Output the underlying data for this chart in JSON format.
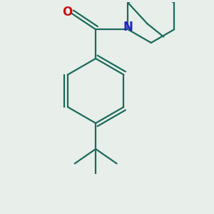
{
  "bg_color": "#e8eeea",
  "bond_color": "#1a6b5a",
  "nitrogen_color": "#2222cc",
  "oxygen_color": "#cc1111",
  "lw": 1.6,
  "font_size": 12
}
